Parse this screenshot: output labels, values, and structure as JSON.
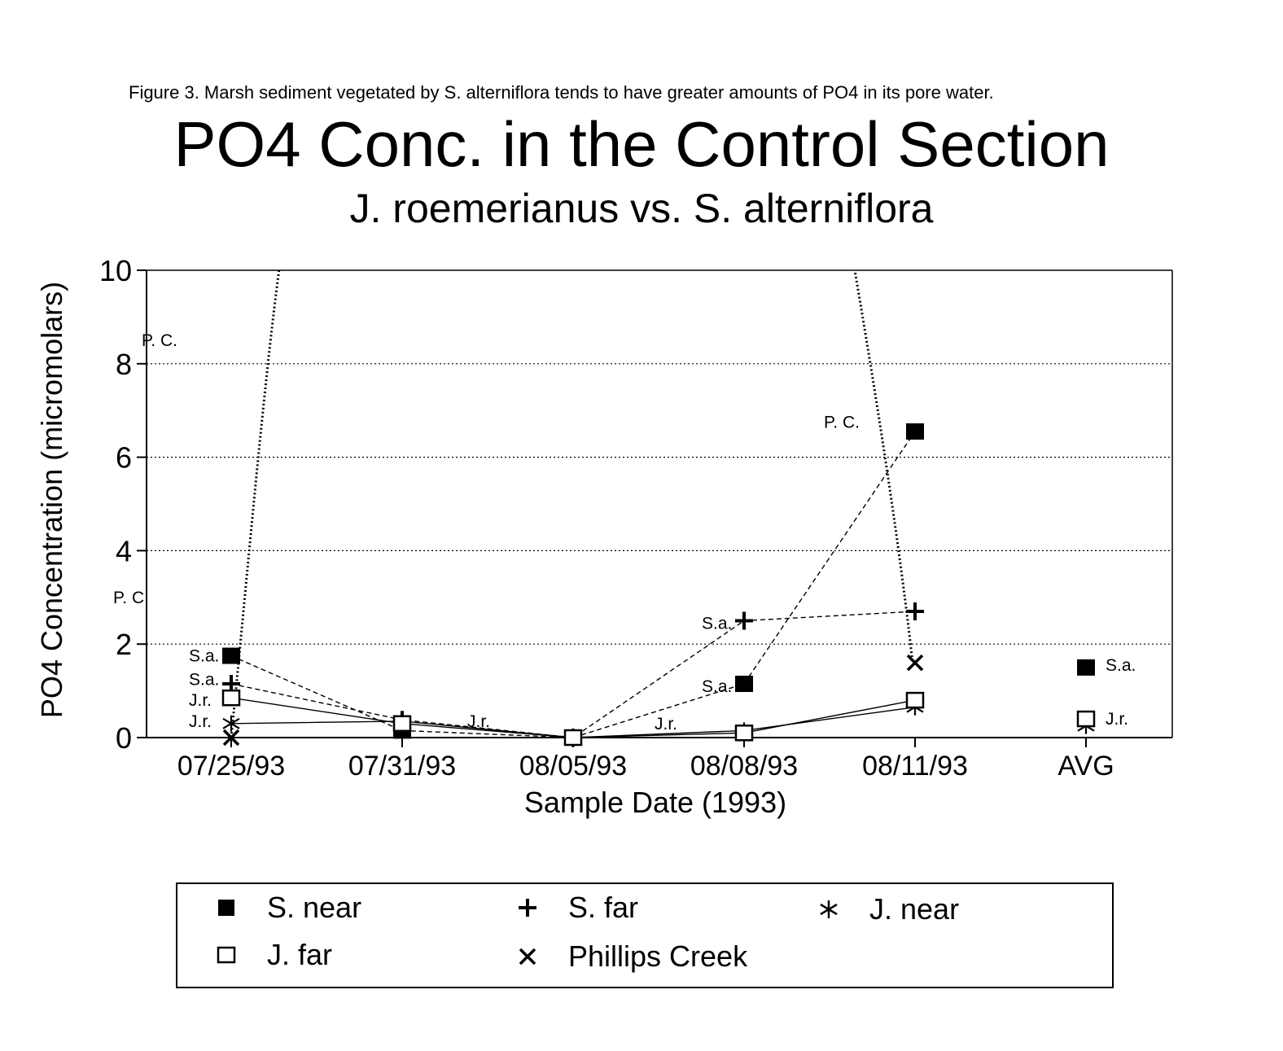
{
  "caption": "Figure 3.  Marsh sediment vegetated by S. alterniflora tends to have greater amounts of PO4 in its pore water.",
  "chart_data": {
    "type": "line",
    "title": "PO4 Conc. in the Control Section",
    "subtitle": "J. roemerianus vs. S. alterniflora",
    "xlabel": "Sample Date (1993)",
    "ylabel": "PO4 Concentration (micromolars)",
    "ylim": [
      0,
      10
    ],
    "yticks": [
      "0",
      "2",
      "4",
      "6",
      "8",
      "10"
    ],
    "categories": [
      "07/25/93",
      "07/31/93",
      "08/05/93",
      "08/08/93",
      "08/11/93",
      "AVG"
    ],
    "grid": "horizontal dotted",
    "series": [
      {
        "name": "S. near",
        "marker": "filled-square",
        "line": "dashed",
        "values": [
          1.75,
          0.15,
          0.0,
          1.15,
          6.55,
          1.5
        ]
      },
      {
        "name": "S. far",
        "marker": "plus",
        "line": "dashed",
        "values": [
          1.15,
          0.38,
          0.0,
          2.5,
          2.7,
          null
        ]
      },
      {
        "name": "J. near",
        "marker": "asterisk",
        "line": "solid",
        "values": [
          0.3,
          0.35,
          0.0,
          0.15,
          0.65,
          0.25
        ]
      },
      {
        "name": "J. far",
        "marker": "open-square",
        "line": "solid",
        "values": [
          0.85,
          0.3,
          0.0,
          0.1,
          0.8,
          0.4
        ]
      },
      {
        "name": "Phillips Creek",
        "marker": "x",
        "line": "dotted",
        "values": [
          0.0,
          null,
          null,
          null,
          1.6,
          null
        ]
      }
    ],
    "annotations": [
      {
        "text": "P. C.",
        "cat": 0,
        "y": 8.5,
        "dx": -110
      },
      {
        "text": "P. C.",
        "cat": 0,
        "y": 3.0,
        "dx": -145
      },
      {
        "text": "S.a.",
        "cat": 0,
        "y": 1.75,
        "dx": -52
      },
      {
        "text": "S.a.",
        "cat": 0,
        "y": 1.25,
        "dx": -52
      },
      {
        "text": "J.r.",
        "cat": 0,
        "y": 0.8,
        "dx": -52
      },
      {
        "text": "J.r.",
        "cat": 0,
        "y": 0.35,
        "dx": -52
      },
      {
        "text": "J.r.",
        "cat": 1,
        "y": 0.35,
        "dx": 80
      },
      {
        "text": "J.r.",
        "cat": 2,
        "y": 0.3,
        "dx": 100
      },
      {
        "text": "S.a.",
        "cat": 3,
        "y": 2.45,
        "dx": -52
      },
      {
        "text": "S.a.",
        "cat": 3,
        "y": 1.1,
        "dx": -52
      },
      {
        "text": "P. C.",
        "cat": 4,
        "y": 6.75,
        "dx": -112
      },
      {
        "text": "S.a.",
        "cat": 5,
        "y": 1.55,
        "dx": 24
      },
      {
        "text": "J.r.",
        "cat": 5,
        "y": 0.4,
        "dx": 24
      }
    ]
  },
  "legend": {
    "items": [
      {
        "label": "S. near",
        "marker": "filled-square"
      },
      {
        "label": "S. far",
        "marker": "plus"
      },
      {
        "label": "J. near",
        "marker": "asterisk"
      },
      {
        "label": "J. far",
        "marker": "open-square"
      },
      {
        "label": "Phillips Creek",
        "marker": "x"
      }
    ]
  }
}
